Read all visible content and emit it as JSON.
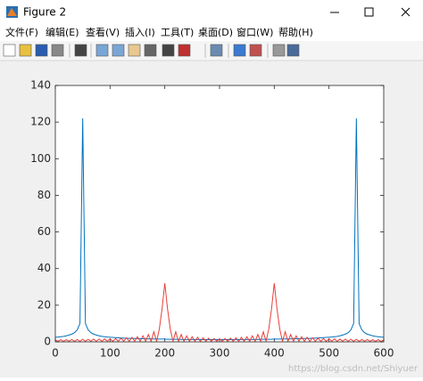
{
  "window": {
    "title": "Figure 2",
    "menu": [
      "文件(F)",
      "编辑(E)",
      "查看(V)",
      "插入(I)",
      "工具(T)",
      "桌面(D)",
      "窗口(W)",
      "帮助(H)"
    ],
    "watermark": "https://blog.csdn.net/Shiyuer"
  },
  "chart_data": {
    "type": "line",
    "x": [
      0,
      5,
      10,
      15,
      20,
      25,
      30,
      35,
      40,
      45,
      50,
      55,
      60,
      65,
      70,
      75,
      80,
      85,
      90,
      95,
      100,
      105,
      110,
      115,
      120,
      125,
      130,
      135,
      140,
      145,
      150,
      155,
      160,
      165,
      170,
      175,
      180,
      185,
      190,
      195,
      200,
      205,
      210,
      215,
      220,
      225,
      230,
      235,
      240,
      245,
      250,
      255,
      260,
      265,
      270,
      275,
      280,
      285,
      290,
      295,
      300,
      305,
      310,
      315,
      320,
      325,
      330,
      335,
      340,
      345,
      350,
      355,
      360,
      365,
      370,
      375,
      380,
      385,
      390,
      395,
      400,
      405,
      410,
      415,
      420,
      425,
      430,
      435,
      440,
      445,
      450,
      455,
      460,
      465,
      470,
      475,
      480,
      485,
      490,
      495,
      500,
      505,
      510,
      515,
      520,
      525,
      530,
      535,
      540,
      545,
      550,
      555,
      560,
      565,
      570,
      575,
      580,
      585,
      590,
      595,
      600
    ],
    "series": [
      {
        "color": "#0072bd",
        "values": [
          2.5,
          2.6,
          2.8,
          3,
          3.3,
          3.7,
          4.2,
          5,
          6.5,
          10,
          122,
          10,
          6.5,
          5,
          4.2,
          3.7,
          3.3,
          3,
          2.8,
          2.6,
          2.5,
          2.4,
          2.3,
          2.2,
          2.1,
          2,
          2,
          1.9,
          1.9,
          1.8,
          1.8,
          1.7,
          1.7,
          1.7,
          1.6,
          1.6,
          1.6,
          1.5,
          1.5,
          1.5,
          1.5,
          1.4,
          1.4,
          1.4,
          1.4,
          1.4,
          1.3,
          1.3,
          1.3,
          1.3,
          1.3,
          1.3,
          1.3,
          1.2,
          1.2,
          1.2,
          1.2,
          1.2,
          1.2,
          1.2,
          1.2,
          1.2,
          1.2,
          1.2,
          1.2,
          1.2,
          1.2,
          1.2,
          1.3,
          1.3,
          1.3,
          1.3,
          1.3,
          1.3,
          1.3,
          1.4,
          1.4,
          1.4,
          1.4,
          1.4,
          1.5,
          1.5,
          1.5,
          1.5,
          1.6,
          1.6,
          1.6,
          1.7,
          1.7,
          1.7,
          1.8,
          1.8,
          1.9,
          1.9,
          2,
          2,
          2.1,
          2.2,
          2.3,
          2.4,
          2.5,
          2.6,
          2.8,
          3,
          3.3,
          3.7,
          4.2,
          5,
          6.5,
          10,
          122,
          10,
          6.5,
          5,
          4.2,
          3.7,
          3.3,
          3,
          2.8,
          2.6,
          2.5
        ]
      },
      {
        "color": "#e8403a",
        "values": [
          1,
          0.3,
          1.2,
          0.3,
          1.2,
          0.3,
          1.3,
          0.3,
          1.3,
          0.3,
          1.4,
          0.3,
          1.4,
          0.3,
          1.5,
          0.3,
          1.5,
          0.3,
          1.6,
          0.3,
          1.7,
          0.3,
          1.8,
          0.3,
          2,
          0.3,
          2.2,
          0.3,
          2.5,
          0.3,
          2.8,
          0.3,
          3.3,
          0.3,
          4,
          0.3,
          5.5,
          0.3,
          7,
          18,
          32,
          18,
          7,
          0.3,
          5.5,
          0.3,
          4,
          0.3,
          3.3,
          0.3,
          2.8,
          0.3,
          2.5,
          0.3,
          2.2,
          0.3,
          2,
          0.3,
          1.8,
          0.3,
          1.7,
          0.3,
          1.8,
          0.3,
          2,
          0.3,
          2.2,
          0.3,
          2.5,
          0.3,
          2.8,
          0.3,
          3.3,
          0.3,
          4,
          0.3,
          5.5,
          0.3,
          7,
          18,
          32,
          18,
          7,
          0.3,
          5.5,
          0.3,
          4,
          0.3,
          3.3,
          0.3,
          2.8,
          0.3,
          2.5,
          0.3,
          2.2,
          0.3,
          2,
          0.3,
          1.8,
          0.3,
          1.7,
          0.3,
          1.6,
          0.3,
          1.5,
          0.3,
          1.5,
          0.3,
          1.4,
          0.3,
          1.4,
          0.3,
          1.3,
          0.3,
          1.3,
          0.3,
          1.2,
          0.3,
          1.2,
          0.3,
          1
        ]
      }
    ],
    "xlim": [
      0,
      600
    ],
    "xticks": [
      0,
      100,
      200,
      300,
      400,
      500,
      600
    ],
    "ylim": [
      0,
      140
    ],
    "yticks": [
      0,
      20,
      40,
      60,
      80,
      100,
      120,
      140
    ],
    "grid": false
  }
}
